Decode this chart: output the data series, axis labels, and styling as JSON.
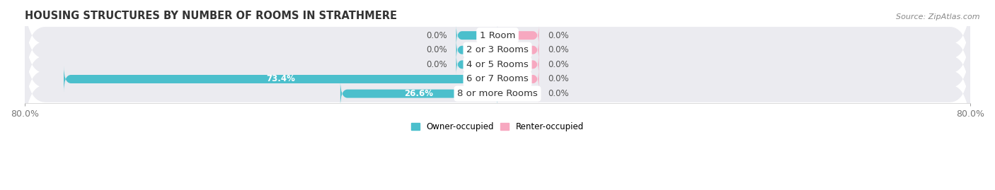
{
  "title": "HOUSING STRUCTURES BY NUMBER OF ROOMS IN STRATHMERE",
  "source": "Source: ZipAtlas.com",
  "categories": [
    "1 Room",
    "2 or 3 Rooms",
    "4 or 5 Rooms",
    "6 or 7 Rooms",
    "8 or more Rooms"
  ],
  "owner_values": [
    0.0,
    0.0,
    0.0,
    73.4,
    26.6
  ],
  "renter_values": [
    0.0,
    0.0,
    0.0,
    0.0,
    0.0
  ],
  "owner_color": "#4bbfcc",
  "renter_color": "#f7a8c0",
  "row_bg_color": "#ebebf0",
  "xlim_left": -80,
  "xlim_right": 80,
  "zero_bar_width": 7,
  "title_fontsize": 10.5,
  "source_fontsize": 8,
  "label_fontsize": 8.5,
  "category_fontsize": 9.5,
  "tick_fontsize": 9
}
